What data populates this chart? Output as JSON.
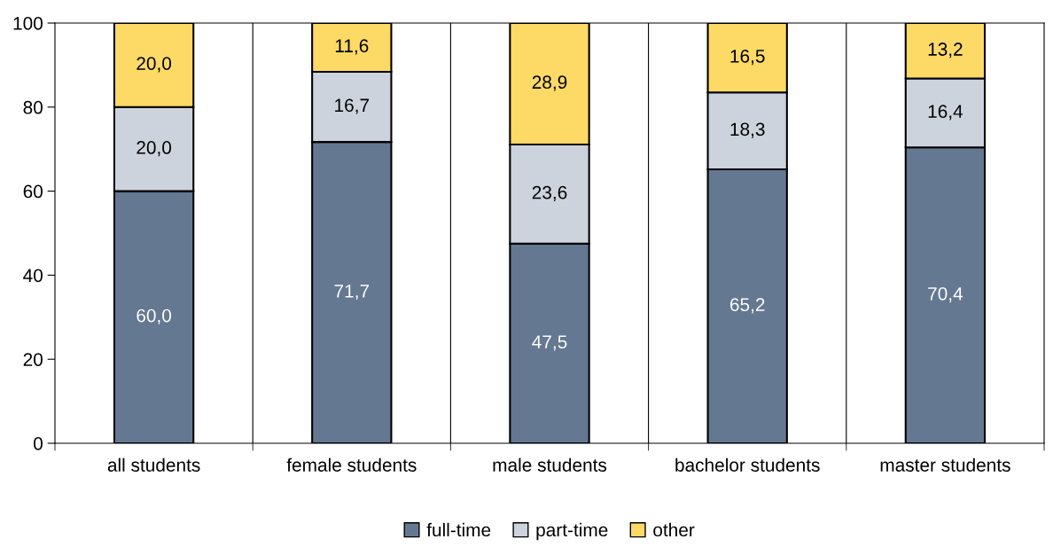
{
  "chart_data": {
    "type": "bar",
    "stacked": true,
    "categories": [
      "all students",
      "female students",
      "male students",
      "bachelor students",
      "master students"
    ],
    "series": [
      {
        "name": "full-time",
        "color": "#647891",
        "values": [
          60.0,
          71.7,
          47.5,
          65.2,
          70.4
        ],
        "value_labels": [
          "60,0",
          "71,7",
          "47,5",
          "65,2",
          "70,4"
        ]
      },
      {
        "name": "part-time",
        "color": "#cdd3dc",
        "values": [
          20.0,
          16.7,
          23.6,
          18.3,
          16.4
        ],
        "value_labels": [
          "20,0",
          "16,7",
          "23,6",
          "18,3",
          "16,4"
        ]
      },
      {
        "name": "other",
        "color": "#fdd966",
        "values": [
          20.0,
          11.6,
          28.9,
          16.5,
          13.2
        ],
        "value_labels": [
          "20,0",
          "11,6",
          "28,9",
          "16,5",
          "13,2"
        ]
      }
    ],
    "ylim": [
      0,
      100
    ],
    "yticks": [
      0,
      20,
      40,
      60,
      80,
      100
    ],
    "grid": "x",
    "legend": "bottom"
  }
}
